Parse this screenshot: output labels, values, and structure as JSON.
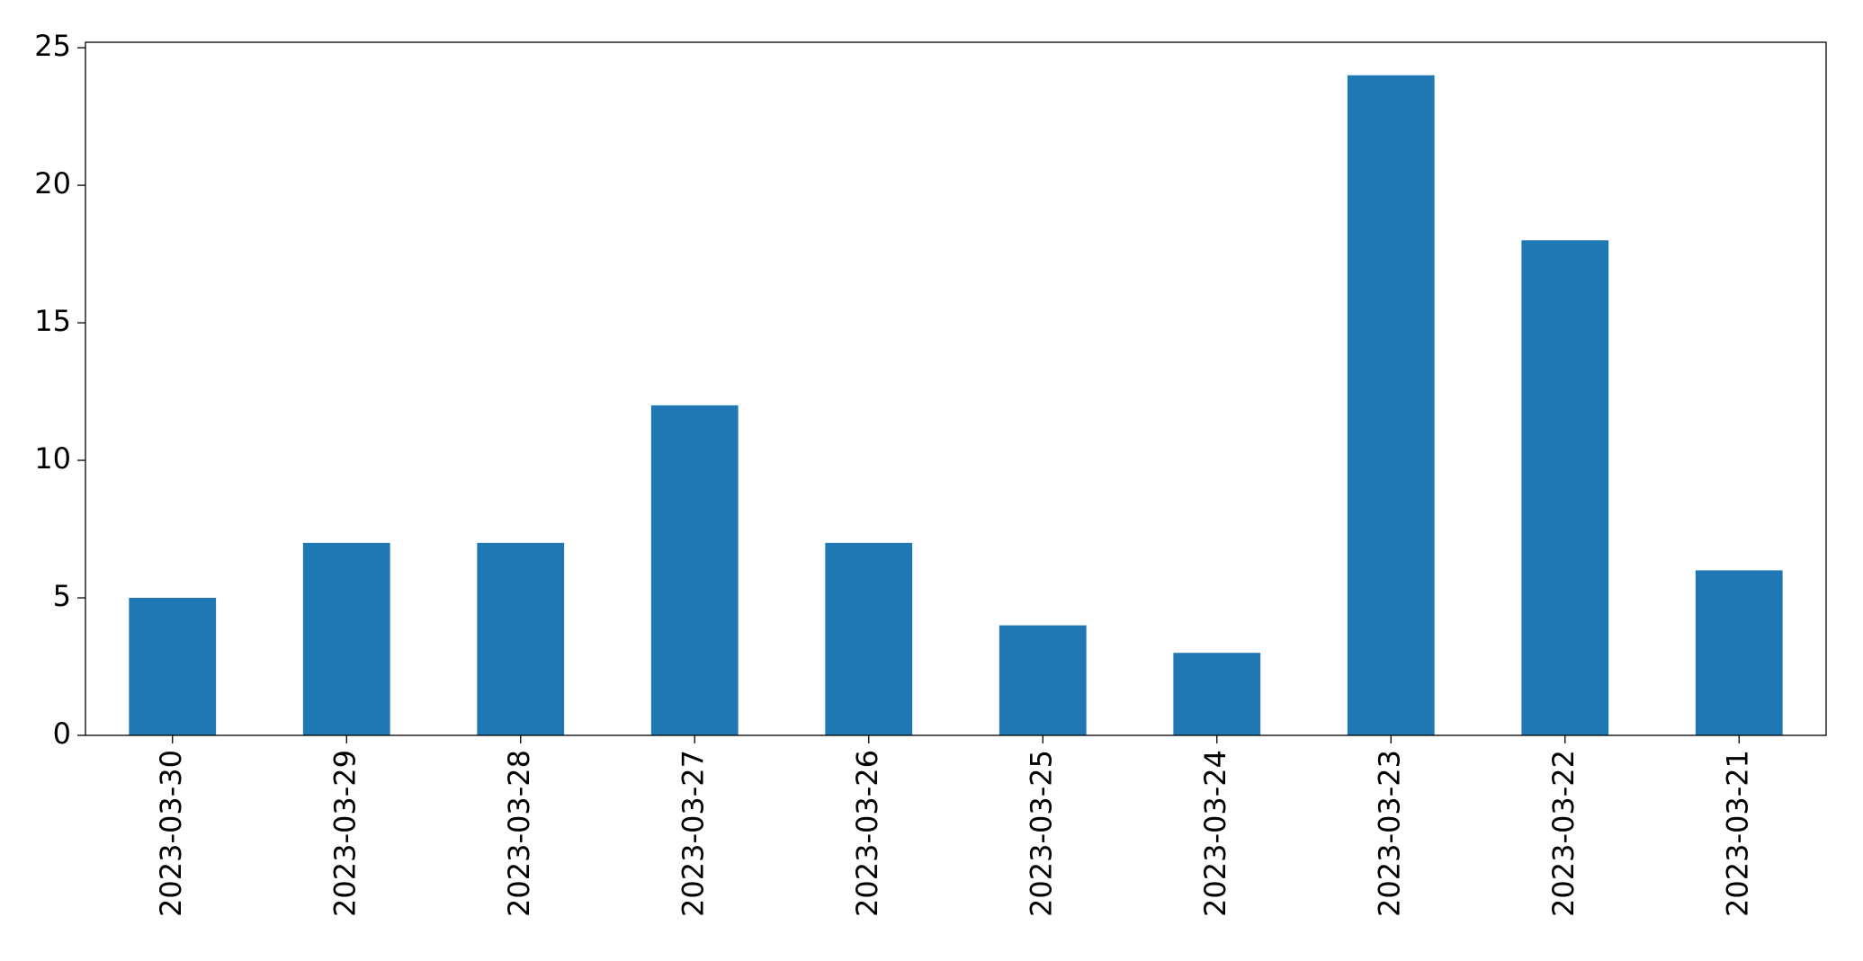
{
  "chart_data": {
    "type": "bar",
    "categories": [
      "2023-03-30",
      "2023-03-29",
      "2023-03-28",
      "2023-03-27",
      "2023-03-26",
      "2023-03-25",
      "2023-03-24",
      "2023-03-23",
      "2023-03-22",
      "2023-03-21"
    ],
    "values": [
      5,
      7,
      7,
      12,
      7,
      4,
      3,
      24,
      18,
      6
    ],
    "color": "#1f77b4",
    "ylim": [
      0,
      25.2
    ],
    "yticks": [
      0,
      5,
      10,
      15,
      20,
      25
    ],
    "grid": false
  }
}
